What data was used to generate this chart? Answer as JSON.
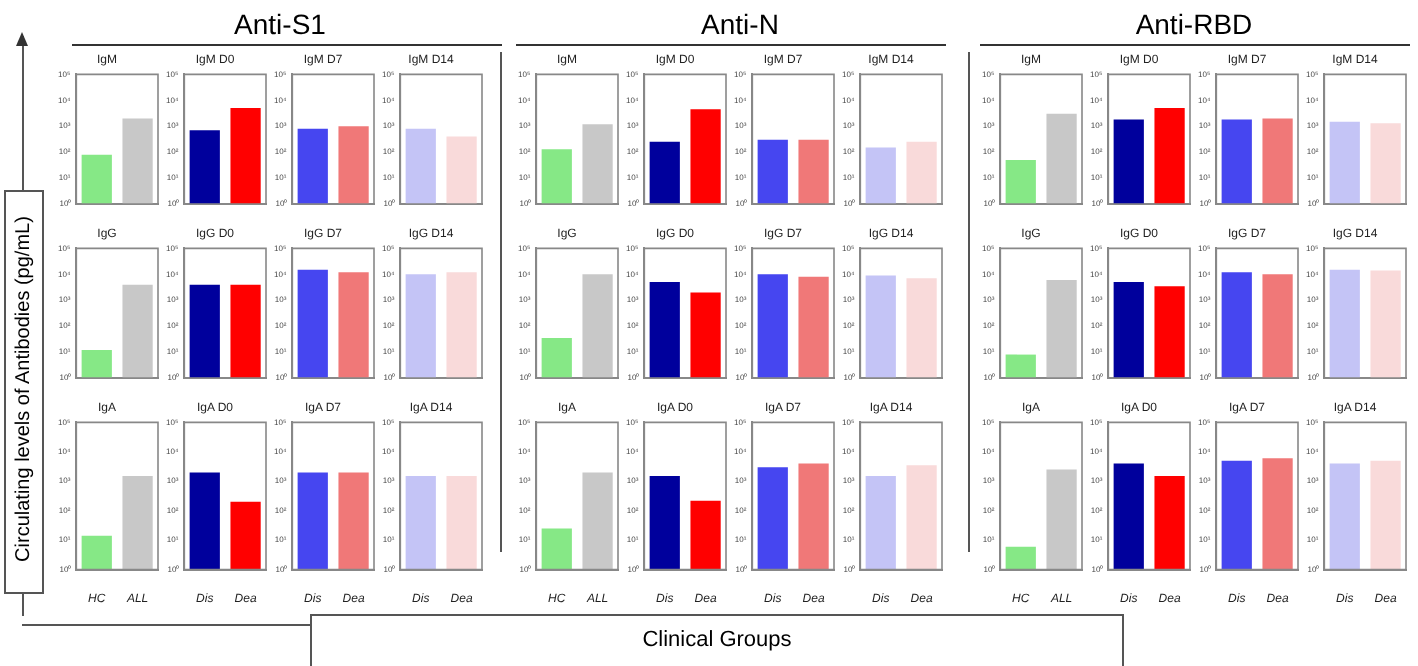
{
  "chart_data": [
    {
      "type": "other",
      "annotations": [
        "Anti-S1",
        "Anti-N",
        "Anti-RBD"
      ],
      "ylabel": "Circulating levels of Antibodies (pg/mL)",
      "xlabel": "Clinical Groups"
    },
    {
      "type": "bar",
      "title": "IgM",
      "categories": [
        null,
        null
      ],
      "values": [
        80,
        2000
      ],
      "colors": [
        "#86e886",
        "#c8c8c8"
      ],
      "log": true,
      "ylim": [
        1,
        100000
      ],
      "yticks": [
        {
          "value": 1,
          "label": "10⁰"
        },
        {
          "value": 10,
          "label": "10¹"
        },
        {
          "value": 100,
          "label": "10²"
        },
        {
          "value": 1000,
          "label": "10³"
        },
        {
          "value": 10000,
          "label": "10⁴"
        },
        {
          "value": 100000,
          "label": "10⁵"
        }
      ],
      "tick_labels": "y"
    },
    {
      "type": "bar",
      "title": "IgM D0",
      "categories": [
        null,
        null
      ],
      "values": [
        700,
        5000
      ],
      "colors": [
        "#00009c",
        "#ff0000"
      ],
      "log": true,
      "ylim": [
        1,
        100000
      ],
      "yticks": [
        {
          "value": 1,
          "label": "10⁰"
        },
        {
          "value": 10,
          "label": "10¹"
        },
        {
          "value": 100,
          "label": "10²"
        },
        {
          "value": 1000,
          "label": "10³"
        },
        {
          "value": 10000,
          "label": "10⁴"
        },
        {
          "value": 100000,
          "label": "10⁵"
        }
      ],
      "tick_labels": "y"
    },
    {
      "type": "bar",
      "title": "IgM D7",
      "categories": [
        null,
        null
      ],
      "values": [
        800,
        1000
      ],
      "colors": [
        "#4646f0",
        "#f07878"
      ],
      "log": true,
      "ylim": [
        1,
        100000
      ],
      "yticks": [
        {
          "value": 1,
          "label": "10⁰"
        },
        {
          "value": 10,
          "label": "10¹"
        },
        {
          "value": 100,
          "label": "10²"
        },
        {
          "value": 1000,
          "label": "10³"
        },
        {
          "value": 10000,
          "label": "10⁴"
        },
        {
          "value": 100000,
          "label": "10⁵"
        }
      ],
      "tick_labels": "y"
    },
    {
      "type": "bar",
      "title": "IgM D14",
      "categories": [
        null,
        null
      ],
      "values": [
        800,
        400
      ],
      "colors": [
        "#c4c4f6",
        "#f9dada"
      ],
      "log": true,
      "ylim": [
        1,
        100000
      ],
      "yticks": [
        {
          "value": 1,
          "label": "10⁰"
        },
        {
          "value": 10,
          "label": "10¹"
        },
        {
          "value": 100,
          "label": "10²"
        },
        {
          "value": 1000,
          "label": "10³"
        },
        {
          "value": 10000,
          "label": "10⁴"
        },
        {
          "value": 100000,
          "label": "10⁵"
        }
      ],
      "tick_labels": "y"
    },
    {
      "type": "bar",
      "title": "IgM",
      "categories": [
        null,
        null
      ],
      "values": [
        130,
        1200
      ],
      "colors": [
        "#86e886",
        "#c8c8c8"
      ],
      "log": true,
      "ylim": [
        1,
        100000
      ],
      "yticks": [
        {
          "value": 1,
          "label": "10⁰"
        },
        {
          "value": 10,
          "label": "10¹"
        },
        {
          "value": 100,
          "label": "10²"
        },
        {
          "value": 1000,
          "label": "10³"
        },
        {
          "value": 10000,
          "label": "10⁴"
        },
        {
          "value": 100000,
          "label": "10⁵"
        }
      ],
      "tick_labels": "y"
    },
    {
      "type": "bar",
      "title": "IgM D0",
      "categories": [
        null,
        null
      ],
      "values": [
        250,
        4500
      ],
      "colors": [
        "#00009c",
        "#ff0000"
      ],
      "log": true,
      "ylim": [
        1,
        100000
      ],
      "yticks": [
        {
          "value": 1,
          "label": "10⁰"
        },
        {
          "value": 10,
          "label": "10¹"
        },
        {
          "value": 100,
          "label": "10²"
        },
        {
          "value": 1000,
          "label": "10³"
        },
        {
          "value": 10000,
          "label": "10⁴"
        },
        {
          "value": 100000,
          "label": "10⁵"
        }
      ],
      "tick_labels": "y"
    },
    {
      "type": "bar",
      "title": "IgM D7",
      "categories": [
        null,
        null
      ],
      "values": [
        300,
        300
      ],
      "colors": [
        "#4646f0",
        "#f07878"
      ],
      "log": true,
      "ylim": [
        1,
        100000
      ],
      "yticks": [
        {
          "value": 1,
          "label": "10⁰"
        },
        {
          "value": 10,
          "label": "10¹"
        },
        {
          "value": 100,
          "label": "10²"
        },
        {
          "value": 1000,
          "label": "10³"
        },
        {
          "value": 10000,
          "label": "10⁴"
        },
        {
          "value": 100000,
          "label": "10⁵"
        }
      ],
      "tick_labels": "y"
    },
    {
      "type": "bar",
      "title": "IgM D14",
      "categories": [
        null,
        null
      ],
      "values": [
        150,
        250
      ],
      "colors": [
        "#c4c4f6",
        "#f9dada"
      ],
      "log": true,
      "ylim": [
        1,
        100000
      ],
      "yticks": [
        {
          "value": 1,
          "label": "10⁰"
        },
        {
          "value": 10,
          "label": "10¹"
        },
        {
          "value": 100,
          "label": "10²"
        },
        {
          "value": 1000,
          "label": "10³"
        },
        {
          "value": 10000,
          "label": "10⁴"
        },
        {
          "value": 100000,
          "label": "10⁵"
        }
      ],
      "tick_labels": "y"
    },
    {
      "type": "bar",
      "title": "IgM",
      "categories": [
        null,
        null
      ],
      "values": [
        50,
        3000
      ],
      "colors": [
        "#86e886",
        "#c8c8c8"
      ],
      "log": true,
      "ylim": [
        1,
        100000
      ],
      "yticks": [
        {
          "value": 1,
          "label": "10⁰"
        },
        {
          "value": 10,
          "label": "10¹"
        },
        {
          "value": 100,
          "label": "10²"
        },
        {
          "value": 1000,
          "label": "10³"
        },
        {
          "value": 10000,
          "label": "10⁴"
        },
        {
          "value": 100000,
          "label": "10⁵"
        }
      ],
      "tick_labels": "y"
    },
    {
      "type": "bar",
      "title": "IgM D0",
      "categories": [
        null,
        null
      ],
      "values": [
        1800,
        5000
      ],
      "colors": [
        "#00009c",
        "#ff0000"
      ],
      "log": true,
      "ylim": [
        1,
        100000
      ],
      "yticks": [
        {
          "value": 1,
          "label": "10⁰"
        },
        {
          "value": 10,
          "label": "10¹"
        },
        {
          "value": 100,
          "label": "10²"
        },
        {
          "value": 1000,
          "label": "10³"
        },
        {
          "value": 10000,
          "label": "10⁴"
        },
        {
          "value": 100000,
          "label": "10⁵"
        }
      ],
      "tick_labels": "y"
    },
    {
      "type": "bar",
      "title": "IgM D7",
      "categories": [
        null,
        null
      ],
      "values": [
        1800,
        2000
      ],
      "colors": [
        "#4646f0",
        "#f07878"
      ],
      "log": true,
      "ylim": [
        1,
        100000
      ],
      "yticks": [
        {
          "value": 1,
          "label": "10⁰"
        },
        {
          "value": 10,
          "label": "10¹"
        },
        {
          "value": 100,
          "label": "10²"
        },
        {
          "value": 1000,
          "label": "10³"
        },
        {
          "value": 10000,
          "label": "10⁴"
        },
        {
          "value": 100000,
          "label": "10⁵"
        }
      ],
      "tick_labels": "y"
    },
    {
      "type": "bar",
      "title": "IgM D14",
      "categories": [
        null,
        null
      ],
      "values": [
        1500,
        1300
      ],
      "colors": [
        "#c4c4f6",
        "#f9dada"
      ],
      "log": true,
      "ylim": [
        1,
        100000
      ],
      "yticks": [
        {
          "value": 1,
          "label": "10⁰"
        },
        {
          "value": 10,
          "label": "10¹"
        },
        {
          "value": 100,
          "label": "10²"
        },
        {
          "value": 1000,
          "label": "10³"
        },
        {
          "value": 10000,
          "label": "10⁴"
        },
        {
          "value": 100000,
          "label": "10⁵"
        }
      ],
      "tick_labels": "y"
    },
    {
      "type": "bar",
      "title": "IgG",
      "categories": [
        null,
        null
      ],
      "values": [
        12,
        4000
      ],
      "colors": [
        "#86e886",
        "#c8c8c8"
      ],
      "log": true,
      "ylim": [
        1,
        100000
      ],
      "yticks": [
        {
          "value": 1,
          "label": "10⁰"
        },
        {
          "value": 10,
          "label": "10¹"
        },
        {
          "value": 100,
          "label": "10²"
        },
        {
          "value": 1000,
          "label": "10³"
        },
        {
          "value": 10000,
          "label": "10⁴"
        },
        {
          "value": 100000,
          "label": "10⁵"
        }
      ],
      "tick_labels": "y"
    },
    {
      "type": "bar",
      "title": "IgG D0",
      "categories": [
        null,
        null
      ],
      "values": [
        4000,
        4000
      ],
      "colors": [
        "#00009c",
        "#ff0000"
      ],
      "log": true,
      "ylim": [
        1,
        100000
      ],
      "yticks": [
        {
          "value": 1,
          "label": "10⁰"
        },
        {
          "value": 10,
          "label": "10¹"
        },
        {
          "value": 100,
          "label": "10²"
        },
        {
          "value": 1000,
          "label": "10³"
        },
        {
          "value": 10000,
          "label": "10⁴"
        },
        {
          "value": 100000,
          "label": "10⁵"
        }
      ],
      "tick_labels": "y"
    },
    {
      "type": "bar",
      "title": "IgG D7",
      "categories": [
        null,
        null
      ],
      "values": [
        15000,
        12000
      ],
      "colors": [
        "#4646f0",
        "#f07878"
      ],
      "log": true,
      "ylim": [
        1,
        100000
      ],
      "yticks": [
        {
          "value": 1,
          "label": "10⁰"
        },
        {
          "value": 10,
          "label": "10¹"
        },
        {
          "value": 100,
          "label": "10²"
        },
        {
          "value": 1000,
          "label": "10³"
        },
        {
          "value": 10000,
          "label": "10⁴"
        },
        {
          "value": 100000,
          "label": "10⁵"
        }
      ],
      "tick_labels": "y"
    },
    {
      "type": "bar",
      "title": "IgG D14",
      "categories": [
        null,
        null
      ],
      "values": [
        10000,
        12000
      ],
      "colors": [
        "#c4c4f6",
        "#f9dada"
      ],
      "log": true,
      "ylim": [
        1,
        100000
      ],
      "yticks": [
        {
          "value": 1,
          "label": "10⁰"
        },
        {
          "value": 10,
          "label": "10¹"
        },
        {
          "value": 100,
          "label": "10²"
        },
        {
          "value": 1000,
          "label": "10³"
        },
        {
          "value": 10000,
          "label": "10⁴"
        },
        {
          "value": 100000,
          "label": "10⁵"
        }
      ],
      "tick_labels": "y"
    },
    {
      "type": "bar",
      "title": "IgG",
      "categories": [
        null,
        null
      ],
      "values": [
        35,
        10000
      ],
      "colors": [
        "#86e886",
        "#c8c8c8"
      ],
      "log": true,
      "ylim": [
        1,
        100000
      ],
      "yticks": [
        {
          "value": 1,
          "label": "10⁰"
        },
        {
          "value": 10,
          "label": "10¹"
        },
        {
          "value": 100,
          "label": "10²"
        },
        {
          "value": 1000,
          "label": "10³"
        },
        {
          "value": 10000,
          "label": "10⁴"
        },
        {
          "value": 100000,
          "label": "10⁵"
        }
      ],
      "tick_labels": "y"
    },
    {
      "type": "bar",
      "title": "IgG D0",
      "categories": [
        null,
        null
      ],
      "values": [
        5000,
        2000
      ],
      "colors": [
        "#00009c",
        "#ff0000"
      ],
      "log": true,
      "ylim": [
        1,
        100000
      ],
      "yticks": [
        {
          "value": 1,
          "label": "10⁰"
        },
        {
          "value": 10,
          "label": "10¹"
        },
        {
          "value": 100,
          "label": "10²"
        },
        {
          "value": 1000,
          "label": "10³"
        },
        {
          "value": 10000,
          "label": "10⁴"
        },
        {
          "value": 100000,
          "label": "10⁵"
        }
      ],
      "tick_labels": "y"
    },
    {
      "type": "bar",
      "title": "IgG D7",
      "categories": [
        null,
        null
      ],
      "values": [
        10000,
        8000
      ],
      "colors": [
        "#4646f0",
        "#f07878"
      ],
      "log": true,
      "ylim": [
        1,
        100000
      ],
      "yticks": [
        {
          "value": 1,
          "label": "10⁰"
        },
        {
          "value": 10,
          "label": "10¹"
        },
        {
          "value": 100,
          "label": "10²"
        },
        {
          "value": 1000,
          "label": "10³"
        },
        {
          "value": 10000,
          "label": "10⁴"
        },
        {
          "value": 100000,
          "label": "10⁵"
        }
      ],
      "tick_labels": "y"
    },
    {
      "type": "bar",
      "title": "IgG D14",
      "categories": [
        null,
        null
      ],
      "values": [
        9000,
        7000
      ],
      "colors": [
        "#c4c4f6",
        "#f9dada"
      ],
      "log": true,
      "ylim": [
        1,
        100000
      ],
      "yticks": [
        {
          "value": 1,
          "label": "10⁰"
        },
        {
          "value": 10,
          "label": "10¹"
        },
        {
          "value": 100,
          "label": "10²"
        },
        {
          "value": 1000,
          "label": "10³"
        },
        {
          "value": 10000,
          "label": "10⁴"
        },
        {
          "value": 100000,
          "label": "10⁵"
        }
      ],
      "tick_labels": "y"
    },
    {
      "type": "bar",
      "title": "IgG",
      "categories": [
        null,
        null
      ],
      "values": [
        8,
        6000
      ],
      "colors": [
        "#86e886",
        "#c8c8c8"
      ],
      "log": true,
      "ylim": [
        1,
        100000
      ],
      "yticks": [
        {
          "value": 1,
          "label": "10⁰"
        },
        {
          "value": 10,
          "label": "10¹"
        },
        {
          "value": 100,
          "label": "10²"
        },
        {
          "value": 1000,
          "label": "10³"
        },
        {
          "value": 10000,
          "label": "10⁴"
        },
        {
          "value": 100000,
          "label": "10⁵"
        }
      ],
      "tick_labels": "y"
    },
    {
      "type": "bar",
      "title": "IgG D0",
      "categories": [
        null,
        null
      ],
      "values": [
        5000,
        3500
      ],
      "colors": [
        "#00009c",
        "#ff0000"
      ],
      "log": true,
      "ylim": [
        1,
        100000
      ],
      "yticks": [
        {
          "value": 1,
          "label": "10⁰"
        },
        {
          "value": 10,
          "label": "10¹"
        },
        {
          "value": 100,
          "label": "10²"
        },
        {
          "value": 1000,
          "label": "10³"
        },
        {
          "value": 10000,
          "label": "10⁴"
        },
        {
          "value": 100000,
          "label": "10⁵"
        }
      ],
      "tick_labels": "y"
    },
    {
      "type": "bar",
      "title": "IgG D7",
      "categories": [
        null,
        null
      ],
      "values": [
        12000,
        10000
      ],
      "colors": [
        "#4646f0",
        "#f07878"
      ],
      "log": true,
      "ylim": [
        1,
        100000
      ],
      "yticks": [
        {
          "value": 1,
          "label": "10⁰"
        },
        {
          "value": 10,
          "label": "10¹"
        },
        {
          "value": 100,
          "label": "10²"
        },
        {
          "value": 1000,
          "label": "10³"
        },
        {
          "value": 10000,
          "label": "10⁴"
        },
        {
          "value": 100000,
          "label": "10⁵"
        }
      ],
      "tick_labels": "y"
    },
    {
      "type": "bar",
      "title": "IgG D14",
      "categories": [
        null,
        null
      ],
      "values": [
        15000,
        14000
      ],
      "colors": [
        "#c4c4f6",
        "#f9dada"
      ],
      "log": true,
      "ylim": [
        1,
        100000
      ],
      "yticks": [
        {
          "value": 1,
          "label": "10⁰"
        },
        {
          "value": 10,
          "label": "10¹"
        },
        {
          "value": 100,
          "label": "10²"
        },
        {
          "value": 1000,
          "label": "10³"
        },
        {
          "value": 10000,
          "label": "10⁴"
        },
        {
          "value": 100000,
          "label": "10⁵"
        }
      ],
      "tick_labels": "y"
    },
    {
      "type": "bar",
      "title": "IgA",
      "categories": [
        "HC",
        "ALL"
      ],
      "values": [
        14,
        1500
      ],
      "colors": [
        "#86e886",
        "#c8c8c8"
      ],
      "log": true,
      "ylim": [
        1,
        100000
      ],
      "yticks": [
        {
          "value": 1,
          "label": "10⁰"
        },
        {
          "value": 10,
          "label": "10¹"
        },
        {
          "value": 100,
          "label": "10²"
        },
        {
          "value": 1000,
          "label": "10³"
        },
        {
          "value": 10000,
          "label": "10⁴"
        },
        {
          "value": 100000,
          "label": "10⁵"
        }
      ]
    },
    {
      "type": "bar",
      "title": "IgA D0",
      "categories": [
        "Dis",
        "Dea"
      ],
      "values": [
        2000,
        200
      ],
      "colors": [
        "#00009c",
        "#ff0000"
      ],
      "log": true,
      "ylim": [
        1,
        100000
      ],
      "yticks": [
        {
          "value": 1,
          "label": "10⁰"
        },
        {
          "value": 10,
          "label": "10¹"
        },
        {
          "value": 100,
          "label": "10²"
        },
        {
          "value": 1000,
          "label": "10³"
        },
        {
          "value": 10000,
          "label": "10⁴"
        },
        {
          "value": 100000,
          "label": "10⁵"
        }
      ]
    },
    {
      "type": "bar",
      "title": "IgA D7",
      "categories": [
        "Dis",
        "Dea"
      ],
      "values": [
        2000,
        2000
      ],
      "colors": [
        "#4646f0",
        "#f07878"
      ],
      "log": true,
      "ylim": [
        1,
        100000
      ],
      "yticks": [
        {
          "value": 1,
          "label": "10⁰"
        },
        {
          "value": 10,
          "label": "10¹"
        },
        {
          "value": 100,
          "label": "10²"
        },
        {
          "value": 1000,
          "label": "10³"
        },
        {
          "value": 10000,
          "label": "10⁴"
        },
        {
          "value": 100000,
          "label": "10⁵"
        }
      ]
    },
    {
      "type": "bar",
      "title": "IgA D14",
      "categories": [
        "Dis",
        "Dea"
      ],
      "values": [
        1500,
        1500
      ],
      "colors": [
        "#c4c4f6",
        "#f9dada"
      ],
      "log": true,
      "ylim": [
        1,
        100000
      ],
      "yticks": [
        {
          "value": 1,
          "label": "10⁰"
        },
        {
          "value": 10,
          "label": "10¹"
        },
        {
          "value": 100,
          "label": "10²"
        },
        {
          "value": 1000,
          "label": "10³"
        },
        {
          "value": 10000,
          "label": "10⁴"
        },
        {
          "value": 100000,
          "label": "10⁵"
        }
      ]
    },
    {
      "type": "bar",
      "title": "IgA",
      "categories": [
        "HC",
        "ALL"
      ],
      "values": [
        25,
        2000
      ],
      "colors": [
        "#86e886",
        "#c8c8c8"
      ],
      "log": true,
      "ylim": [
        1,
        100000
      ],
      "yticks": [
        {
          "value": 1,
          "label": "10⁰"
        },
        {
          "value": 10,
          "label": "10¹"
        },
        {
          "value": 100,
          "label": "10²"
        },
        {
          "value": 1000,
          "label": "10³"
        },
        {
          "value": 10000,
          "label": "10⁴"
        },
        {
          "value": 100000,
          "label": "10⁵"
        }
      ]
    },
    {
      "type": "bar",
      "title": "IgA D0",
      "categories": [
        "Dis",
        "Dea"
      ],
      "values": [
        1500,
        220
      ],
      "colors": [
        "#00009c",
        "#ff0000"
      ],
      "log": true,
      "ylim": [
        1,
        100000
      ],
      "yticks": [
        {
          "value": 1,
          "label": "10⁰"
        },
        {
          "value": 10,
          "label": "10¹"
        },
        {
          "value": 100,
          "label": "10²"
        },
        {
          "value": 1000,
          "label": "10³"
        },
        {
          "value": 10000,
          "label": "10⁴"
        },
        {
          "value": 100000,
          "label": "10⁵"
        }
      ]
    },
    {
      "type": "bar",
      "title": "IgA D7",
      "categories": [
        "Dis",
        "Dea"
      ],
      "values": [
        3000,
        4000
      ],
      "colors": [
        "#4646f0",
        "#f07878"
      ],
      "log": true,
      "ylim": [
        1,
        100000
      ],
      "yticks": [
        {
          "value": 1,
          "label": "10⁰"
        },
        {
          "value": 10,
          "label": "10¹"
        },
        {
          "value": 100,
          "label": "10²"
        },
        {
          "value": 1000,
          "label": "10³"
        },
        {
          "value": 10000,
          "label": "10⁴"
        },
        {
          "value": 100000,
          "label": "10⁵"
        }
      ]
    },
    {
      "type": "bar",
      "title": "IgA D14",
      "categories": [
        "Dis",
        "Dea"
      ],
      "values": [
        1500,
        3500
      ],
      "colors": [
        "#c4c4f6",
        "#f9dada"
      ],
      "log": true,
      "ylim": [
        1,
        100000
      ],
      "yticks": [
        {
          "value": 1,
          "label": "10⁰"
        },
        {
          "value": 10,
          "label": "10¹"
        },
        {
          "value": 100,
          "label": "10²"
        },
        {
          "value": 1000,
          "label": "10³"
        },
        {
          "value": 10000,
          "label": "10⁴"
        },
        {
          "value": 100000,
          "label": "10⁵"
        }
      ]
    },
    {
      "type": "bar",
      "title": "IgA",
      "categories": [
        "HC",
        "ALL"
      ],
      "values": [
        6,
        2500
      ],
      "colors": [
        "#86e886",
        "#c8c8c8"
      ],
      "log": true,
      "ylim": [
        1,
        100000
      ],
      "yticks": [
        {
          "value": 1,
          "label": "10⁰"
        },
        {
          "value": 10,
          "label": "10¹"
        },
        {
          "value": 100,
          "label": "10²"
        },
        {
          "value": 1000,
          "label": "10³"
        },
        {
          "value": 10000,
          "label": "10⁴"
        },
        {
          "value": 100000,
          "label": "10⁵"
        }
      ]
    },
    {
      "type": "bar",
      "title": "IgA D0",
      "categories": [
        "Dis",
        "Dea"
      ],
      "values": [
        4000,
        1500
      ],
      "colors": [
        "#00009c",
        "#ff0000"
      ],
      "log": true,
      "ylim": [
        1,
        100000
      ],
      "yticks": [
        {
          "value": 1,
          "label": "10⁰"
        },
        {
          "value": 10,
          "label": "10¹"
        },
        {
          "value": 100,
          "label": "10²"
        },
        {
          "value": 1000,
          "label": "10³"
        },
        {
          "value": 10000,
          "label": "10⁴"
        },
        {
          "value": 100000,
          "label": "10⁵"
        }
      ]
    },
    {
      "type": "bar",
      "title": "IgA D7",
      "categories": [
        "Dis",
        "Dea"
      ],
      "values": [
        5000,
        6000
      ],
      "colors": [
        "#4646f0",
        "#f07878"
      ],
      "log": true,
      "ylim": [
        1,
        100000
      ],
      "yticks": [
        {
          "value": 1,
          "label": "10⁰"
        },
        {
          "value": 10,
          "label": "10¹"
        },
        {
          "value": 100,
          "label": "10²"
        },
        {
          "value": 1000,
          "label": "10³"
        },
        {
          "value": 10000,
          "label": "10⁴"
        },
        {
          "value": 100000,
          "label": "10⁵"
        }
      ]
    },
    {
      "type": "bar",
      "title": "IgA D14",
      "categories": [
        "Dis",
        "Dea"
      ],
      "values": [
        4000,
        5000
      ],
      "colors": [
        "#c4c4f6",
        "#f9dada"
      ],
      "log": true,
      "ylim": [
        1,
        100000
      ],
      "yticks": [
        {
          "value": 1,
          "label": "10⁰"
        },
        {
          "value": 10,
          "label": "10¹"
        },
        {
          "value": 100,
          "label": "10²"
        },
        {
          "value": 1000,
          "label": "10³"
        },
        {
          "value": 10000,
          "label": "10⁴"
        },
        {
          "value": 100000,
          "label": "10⁵"
        }
      ]
    }
  ]
}
